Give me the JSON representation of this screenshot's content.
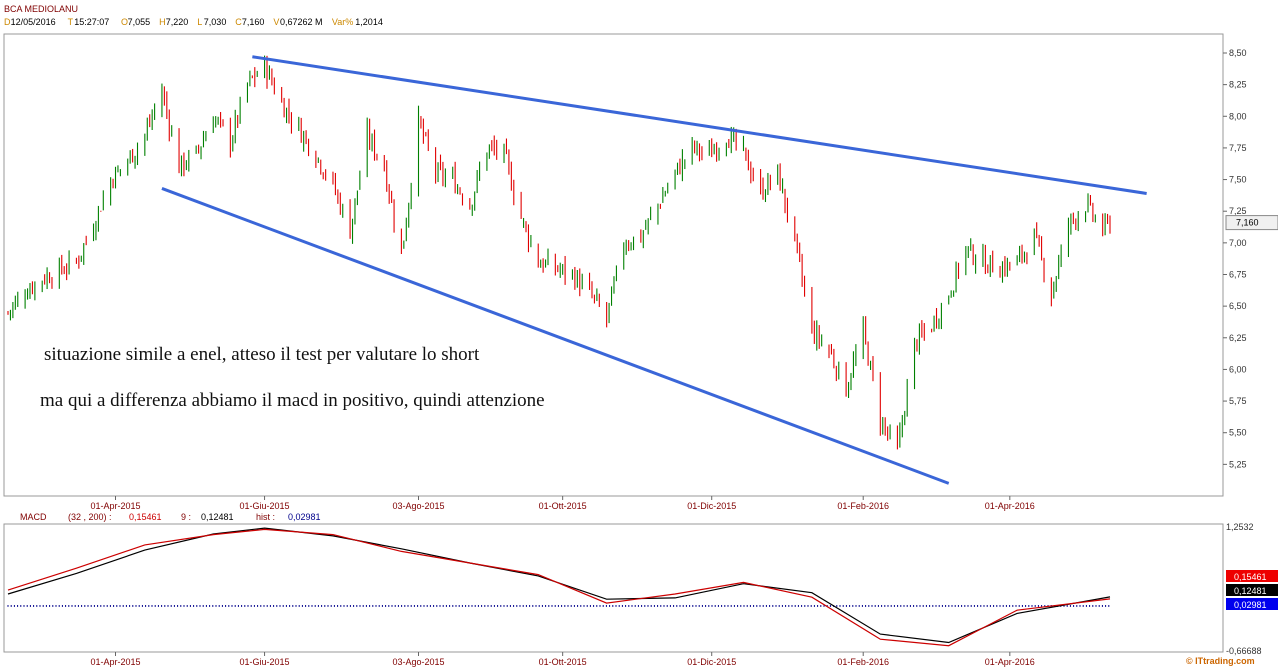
{
  "header": {
    "title": "BCA MEDIOLANU",
    "fields": [
      {
        "key": "D",
        "value": "12/05/2016"
      },
      {
        "key": "T",
        "value": "15:27:07"
      },
      {
        "key": "O",
        "value": "7,055"
      },
      {
        "key": "H",
        "value": "7,220"
      },
      {
        "key": "L",
        "value": "7,030"
      },
      {
        "key": "C",
        "value": "7,160"
      },
      {
        "key": "V",
        "value": "0,67262 M"
      },
      {
        "key": "Var%",
        "value": "1,2014"
      }
    ]
  },
  "annotations": [
    "situazione simile a enel, atteso il test per valutare lo short",
    "ma qui a differenza abbiamo il macd in positivo, quindi attenzione"
  ],
  "watermark": "© ITtrading.com",
  "colors": {
    "up": "#008000",
    "down": "#e00000",
    "trendline": "#3a66d8",
    "macd_line": "#000000",
    "signal_line": "#cc0000",
    "histogram": "#00008b",
    "axis_label": "#800000"
  },
  "chart_data": [
    {
      "type": "candlestick",
      "title": "BCA MEDIOLANU",
      "x_ticks": [
        "01-Apr-2015",
        "01-Giu-2015",
        "03-Ago-2015",
        "01-Ott-2015",
        "01-Dic-2015",
        "01-Feb-2016",
        "01-Apr-2016"
      ],
      "y_ticks": [
        "8,50",
        "8,25",
        "8,00",
        "7,75",
        "7,50",
        "7,25",
        "7,00",
        "6,75",
        "6,50",
        "6,25",
        "6,00",
        "5,75",
        "5,50",
        "5,25"
      ],
      "ylim": [
        5.0,
        8.65
      ],
      "last_price_label": "7,160",
      "last_price": 7.16,
      "close_path": [
        {
          "date": "2015-02-16",
          "value": 6.45
        },
        {
          "date": "2015-02-23",
          "value": 6.62
        },
        {
          "date": "2015-03-02",
          "value": 6.72
        },
        {
          "date": "2015-03-09",
          "value": 6.78
        },
        {
          "date": "2015-03-16",
          "value": 6.85
        },
        {
          "date": "2015-03-23",
          "value": 7.15
        },
        {
          "date": "2015-03-30",
          "value": 7.5
        },
        {
          "date": "2015-04-06",
          "value": 7.65
        },
        {
          "date": "2015-04-13",
          "value": 7.85
        },
        {
          "date": "2015-04-20",
          "value": 8.2
        },
        {
          "date": "2015-04-27",
          "value": 7.6
        },
        {
          "date": "2015-05-04",
          "value": 7.7
        },
        {
          "date": "2015-05-11",
          "value": 8.0
        },
        {
          "date": "2015-05-18",
          "value": 7.8
        },
        {
          "date": "2015-05-25",
          "value": 8.25
        },
        {
          "date": "2015-06-01",
          "value": 8.4
        },
        {
          "date": "2015-06-08",
          "value": 8.1
        },
        {
          "date": "2015-06-15",
          "value": 7.9
        },
        {
          "date": "2015-06-22",
          "value": 7.7
        },
        {
          "date": "2015-06-29",
          "value": 7.45
        },
        {
          "date": "2015-07-06",
          "value": 7.1
        },
        {
          "date": "2015-07-13",
          "value": 7.85
        },
        {
          "date": "2015-07-20",
          "value": 7.6
        },
        {
          "date": "2015-07-27",
          "value": 6.9
        },
        {
          "date": "2015-08-03",
          "value": 7.95
        },
        {
          "date": "2015-08-10",
          "value": 7.55
        },
        {
          "date": "2015-08-17",
          "value": 7.5
        },
        {
          "date": "2015-08-24",
          "value": 7.3
        },
        {
          "date": "2015-08-31",
          "value": 7.75
        },
        {
          "date": "2015-09-07",
          "value": 7.7
        },
        {
          "date": "2015-09-14",
          "value": 7.2
        },
        {
          "date": "2015-09-21",
          "value": 6.85
        },
        {
          "date": "2015-09-28",
          "value": 6.8
        },
        {
          "date": "2015-10-05",
          "value": 6.75
        },
        {
          "date": "2015-10-12",
          "value": 6.6
        },
        {
          "date": "2015-10-19",
          "value": 6.4
        },
        {
          "date": "2015-10-26",
          "value": 7.0
        },
        {
          "date": "2015-11-02",
          "value": 7.05
        },
        {
          "date": "2015-11-09",
          "value": 7.3
        },
        {
          "date": "2015-11-16",
          "value": 7.55
        },
        {
          "date": "2015-11-23",
          "value": 7.75
        },
        {
          "date": "2015-11-30",
          "value": 7.7
        },
        {
          "date": "2015-12-07",
          "value": 7.85
        },
        {
          "date": "2015-12-14",
          "value": 7.7
        },
        {
          "date": "2015-12-21",
          "value": 7.4
        },
        {
          "date": "2015-12-28",
          "value": 7.55
        },
        {
          "date": "2016-01-04",
          "value": 7.0
        },
        {
          "date": "2016-01-11",
          "value": 6.3
        },
        {
          "date": "2016-01-18",
          "value": 6.15
        },
        {
          "date": "2016-01-25",
          "value": 5.85
        },
        {
          "date": "2016-02-01",
          "value": 6.3
        },
        {
          "date": "2016-02-08",
          "value": 5.6
        },
        {
          "date": "2016-02-15",
          "value": 5.35
        },
        {
          "date": "2016-02-22",
          "value": 6.2
        },
        {
          "date": "2016-02-29",
          "value": 6.35
        },
        {
          "date": "2016-03-07",
          "value": 6.6
        },
        {
          "date": "2016-03-14",
          "value": 6.95
        },
        {
          "date": "2016-03-21",
          "value": 6.85
        },
        {
          "date": "2016-03-28",
          "value": 6.8
        },
        {
          "date": "2016-04-04",
          "value": 6.85
        },
        {
          "date": "2016-04-11",
          "value": 7.05
        },
        {
          "date": "2016-04-18",
          "value": 6.6
        },
        {
          "date": "2016-04-25",
          "value": 7.15
        },
        {
          "date": "2016-05-02",
          "value": 7.3
        },
        {
          "date": "2016-05-09",
          "value": 7.1
        },
        {
          "date": "2016-05-12",
          "value": 7.16
        }
      ],
      "trendlines": [
        {
          "points": [
            {
              "date": "2015-05-27",
              "value": 8.47
            },
            {
              "date": "2016-05-27",
              "value": 7.39
            }
          ]
        },
        {
          "points": [
            {
              "date": "2015-04-20",
              "value": 7.43
            },
            {
              "date": "2016-03-07",
              "value": 5.1
            }
          ]
        }
      ]
    },
    {
      "type": "line",
      "title": "MACD",
      "params": "(32 , 200) :",
      "macd_value": "0,15461",
      "signal_label": "9 :",
      "signal_value": "0,12481",
      "hist_label": "hist :",
      "hist_value": "0,02981",
      "y_top_label": "1,2532",
      "y_bottom_label": "-0,66688",
      "ylim": [
        -0.66688,
        1.2532
      ],
      "x_ticks": [
        "01-Apr-2015",
        "01-Giu-2015",
        "03-Ago-2015",
        "01-Ott-2015",
        "01-Dic-2015",
        "01-Feb-2016",
        "01-Apr-2016"
      ],
      "series": [
        {
          "key": "macd",
          "values": [
            {
              "date": "2015-02-16",
              "value": 0.2
            },
            {
              "date": "2015-03-16",
              "value": 0.52
            },
            {
              "date": "2015-04-13",
              "value": 0.88
            },
            {
              "date": "2015-05-11",
              "value": 1.13
            },
            {
              "date": "2015-06-01",
              "value": 1.22
            },
            {
              "date": "2015-06-29",
              "value": 1.1
            },
            {
              "date": "2015-07-27",
              "value": 0.9
            },
            {
              "date": "2015-08-24",
              "value": 0.68
            },
            {
              "date": "2015-09-21",
              "value": 0.48
            },
            {
              "date": "2015-10-19",
              "value": 0.12
            },
            {
              "date": "2015-11-16",
              "value": 0.14
            },
            {
              "date": "2015-12-14",
              "value": 0.36
            },
            {
              "date": "2016-01-11",
              "value": 0.22
            },
            {
              "date": "2016-02-08",
              "value": -0.42
            },
            {
              "date": "2016-03-07",
              "value": -0.55
            },
            {
              "date": "2016-04-04",
              "value": -0.1
            },
            {
              "date": "2016-05-12",
              "value": 0.15461
            }
          ]
        },
        {
          "key": "signal",
          "values": [
            {
              "date": "2015-02-16",
              "value": 0.26
            },
            {
              "date": "2015-03-16",
              "value": 0.6
            },
            {
              "date": "2015-04-13",
              "value": 0.96
            },
            {
              "date": "2015-05-11",
              "value": 1.12
            },
            {
              "date": "2015-06-01",
              "value": 1.2
            },
            {
              "date": "2015-06-29",
              "value": 1.12
            },
            {
              "date": "2015-07-27",
              "value": 0.86
            },
            {
              "date": "2015-08-24",
              "value": 0.68
            },
            {
              "date": "2015-09-21",
              "value": 0.5
            },
            {
              "date": "2015-10-19",
              "value": 0.06
            },
            {
              "date": "2015-11-16",
              "value": 0.2
            },
            {
              "date": "2015-12-14",
              "value": 0.38
            },
            {
              "date": "2016-01-11",
              "value": 0.15
            },
            {
              "date": "2016-02-08",
              "value": -0.5
            },
            {
              "date": "2016-03-07",
              "value": -0.6
            },
            {
              "date": "2016-04-04",
              "value": -0.05
            },
            {
              "date": "2016-05-12",
              "value": 0.12481
            }
          ]
        }
      ],
      "histogram_value": 0.02981
    }
  ]
}
